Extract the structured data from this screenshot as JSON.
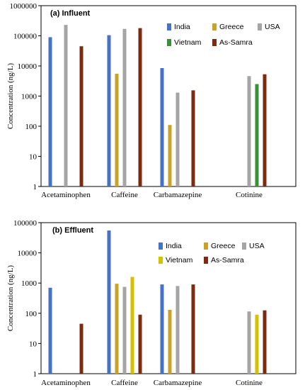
{
  "chart_data": [
    {
      "type": "bar",
      "title": "(a) Influent",
      "ylabel": "Concentration (ng/L)",
      "yscale": "log",
      "ylim": [
        1,
        1000000
      ],
      "y_ticks": [
        "1",
        "10",
        "100",
        "1000",
        "10000",
        "100000",
        "1000000"
      ],
      "categories": [
        "Acetaminophen",
        "Caffeine",
        "Carbamazepine",
        "Cotinine"
      ],
      "legend_position": "top-right",
      "series": [
        {
          "name": "India",
          "color": "#4472c4",
          "values": [
            90000,
            105000,
            8500,
            null
          ]
        },
        {
          "name": "Greece",
          "color": "#c9a227",
          "values": [
            null,
            5500,
            110,
            null
          ]
        },
        {
          "name": "USA",
          "color": "#a5a5a5",
          "values": [
            230000,
            170000,
            1300,
            4600
          ]
        },
        {
          "name": "Vietnam",
          "color": "#3a8f3a",
          "values": [
            null,
            null,
            null,
            2500
          ]
        },
        {
          "name": "As-Samra",
          "color": "#7b2c10",
          "values": [
            45000,
            180000,
            1550,
            5300
          ]
        }
      ]
    },
    {
      "type": "bar",
      "title": "(b) Effluent",
      "ylabel": "Concentration (ng/L)",
      "yscale": "log",
      "ylim": [
        1,
        100000
      ],
      "y_ticks": [
        "1",
        "10",
        "100",
        "1000",
        "10000",
        "100000"
      ],
      "categories": [
        "Acetaminophen",
        "Caffeine",
        "Carbamazepine",
        "Cotinine"
      ],
      "legend_position": "top-right",
      "series": [
        {
          "name": "India",
          "color": "#4472c4",
          "values": [
            700,
            55000,
            900,
            null
          ]
        },
        {
          "name": "Greece",
          "color": "#c9a227",
          "values": [
            null,
            950,
            130,
            null
          ]
        },
        {
          "name": "USA",
          "color": "#a5a5a5",
          "values": [
            null,
            750,
            800,
            115
          ]
        },
        {
          "name": "Vietnam",
          "color": "#d4c200",
          "values": [
            null,
            1600,
            null,
            90
          ]
        },
        {
          "name": "As-Samra",
          "color": "#7b2c10",
          "values": [
            45,
            90,
            900,
            125
          ]
        }
      ]
    }
  ]
}
